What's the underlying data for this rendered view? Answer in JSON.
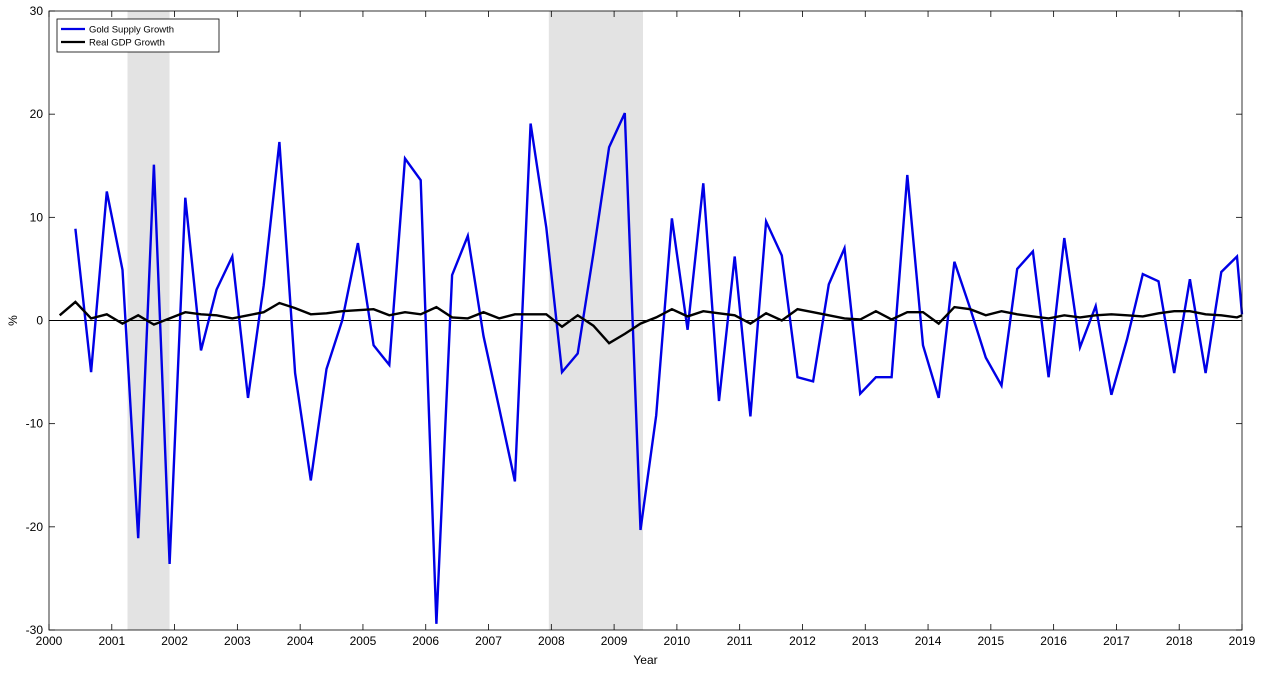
{
  "chart_data": {
    "type": "line",
    "title": "",
    "xlabel": "Year",
    "ylabel": "%",
    "xlim": [
      2000,
      2019
    ],
    "ylim": [
      -30,
      30
    ],
    "x_ticks": [
      2000,
      2001,
      2002,
      2003,
      2004,
      2005,
      2006,
      2007,
      2008,
      2009,
      2010,
      2011,
      2012,
      2013,
      2014,
      2015,
      2016,
      2017,
      2018,
      2019
    ],
    "y_ticks": [
      -30,
      -20,
      -10,
      0,
      10,
      20,
      30
    ],
    "grid": false,
    "legend_position": "top-left",
    "zero_line": true,
    "shaded_periods": [
      {
        "start": 2001.25,
        "end": 2001.92
      },
      {
        "start": 2007.96,
        "end": 2009.46
      }
    ],
    "series": [
      {
        "name": "Gold Supply Growth",
        "color": "#0000e6",
        "points": [
          [
            2000.42,
            8.9
          ],
          [
            2000.67,
            -5.0
          ],
          [
            2000.92,
            12.5
          ],
          [
            2001.17,
            4.9
          ],
          [
            2001.42,
            -21.1
          ],
          [
            2001.67,
            15.1
          ],
          [
            2001.92,
            -23.6
          ],
          [
            2002.17,
            11.9
          ],
          [
            2002.42,
            -2.9
          ],
          [
            2002.67,
            3.0
          ],
          [
            2002.92,
            6.2
          ],
          [
            2003.17,
            -7.5
          ],
          [
            2003.42,
            3.4
          ],
          [
            2003.67,
            17.3
          ],
          [
            2003.92,
            -5.1
          ],
          [
            2004.17,
            -15.5
          ],
          [
            2004.42,
            -4.7
          ],
          [
            2004.67,
            0.0
          ],
          [
            2004.92,
            7.5
          ],
          [
            2005.17,
            -2.4
          ],
          [
            2005.42,
            -4.3
          ],
          [
            2005.67,
            15.7
          ],
          [
            2005.92,
            13.6
          ],
          [
            2006.17,
            -29.4
          ],
          [
            2006.42,
            4.4
          ],
          [
            2006.67,
            8.2
          ],
          [
            2006.92,
            -1.5
          ],
          [
            2007.17,
            -8.5
          ],
          [
            2007.42,
            -15.6
          ],
          [
            2007.67,
            19.1
          ],
          [
            2007.92,
            9.0
          ],
          [
            2008.17,
            -5.0
          ],
          [
            2008.42,
            -3.2
          ],
          [
            2008.67,
            6.5
          ],
          [
            2008.92,
            16.8
          ],
          [
            2009.17,
            20.1
          ],
          [
            2009.42,
            -20.3
          ],
          [
            2009.67,
            -9.2
          ],
          [
            2009.92,
            9.9
          ],
          [
            2010.17,
            -0.9
          ],
          [
            2010.42,
            13.3
          ],
          [
            2010.67,
            -7.8
          ],
          [
            2010.92,
            6.2
          ],
          [
            2011.17,
            -9.3
          ],
          [
            2011.42,
            9.6
          ],
          [
            2011.67,
            6.3
          ],
          [
            2011.92,
            -5.5
          ],
          [
            2012.17,
            -5.9
          ],
          [
            2012.42,
            3.5
          ],
          [
            2012.67,
            7.0
          ],
          [
            2012.92,
            -7.1
          ],
          [
            2013.17,
            -5.5
          ],
          [
            2013.42,
            -5.5
          ],
          [
            2013.67,
            14.1
          ],
          [
            2013.92,
            -2.4
          ],
          [
            2014.17,
            -7.5
          ],
          [
            2014.42,
            5.7
          ],
          [
            2014.67,
            1.2
          ],
          [
            2014.92,
            -3.6
          ],
          [
            2015.17,
            -6.3
          ],
          [
            2015.42,
            5.0
          ],
          [
            2015.67,
            6.7
          ],
          [
            2015.92,
            -5.5
          ],
          [
            2016.17,
            8.0
          ],
          [
            2016.42,
            -2.6
          ],
          [
            2016.67,
            1.4
          ],
          [
            2016.92,
            -7.2
          ],
          [
            2017.17,
            -1.8
          ],
          [
            2017.42,
            4.5
          ],
          [
            2017.67,
            3.8
          ],
          [
            2017.92,
            -5.1
          ],
          [
            2018.17,
            4.0
          ],
          [
            2018.42,
            -5.1
          ],
          [
            2018.67,
            4.7
          ],
          [
            2018.92,
            6.2
          ],
          [
            2019.0,
            0.6
          ]
        ]
      },
      {
        "name": "Real GDP Growth",
        "color": "#000000",
        "points": [
          [
            2000.17,
            0.5
          ],
          [
            2000.42,
            1.8
          ],
          [
            2000.67,
            0.2
          ],
          [
            2000.92,
            0.6
          ],
          [
            2001.17,
            -0.3
          ],
          [
            2001.42,
            0.5
          ],
          [
            2001.67,
            -0.4
          ],
          [
            2001.92,
            0.2
          ],
          [
            2002.17,
            0.8
          ],
          [
            2002.42,
            0.6
          ],
          [
            2002.67,
            0.5
          ],
          [
            2002.92,
            0.2
          ],
          [
            2003.17,
            0.5
          ],
          [
            2003.42,
            0.8
          ],
          [
            2003.67,
            1.7
          ],
          [
            2003.92,
            1.2
          ],
          [
            2004.17,
            0.6
          ],
          [
            2004.42,
            0.7
          ],
          [
            2004.67,
            0.9
          ],
          [
            2004.92,
            1.0
          ],
          [
            2005.17,
            1.1
          ],
          [
            2005.42,
            0.5
          ],
          [
            2005.67,
            0.8
          ],
          [
            2005.92,
            0.6
          ],
          [
            2006.17,
            1.3
          ],
          [
            2006.42,
            0.3
          ],
          [
            2006.67,
            0.2
          ],
          [
            2006.92,
            0.8
          ],
          [
            2007.17,
            0.2
          ],
          [
            2007.42,
            0.6
          ],
          [
            2007.67,
            0.6
          ],
          [
            2007.92,
            0.6
          ],
          [
            2008.17,
            -0.6
          ],
          [
            2008.42,
            0.5
          ],
          [
            2008.67,
            -0.5
          ],
          [
            2008.92,
            -2.2
          ],
          [
            2009.17,
            -1.3
          ],
          [
            2009.42,
            -0.3
          ],
          [
            2009.67,
            0.3
          ],
          [
            2009.92,
            1.1
          ],
          [
            2010.17,
            0.4
          ],
          [
            2010.42,
            0.9
          ],
          [
            2010.67,
            0.7
          ],
          [
            2010.92,
            0.5
          ],
          [
            2011.17,
            -0.3
          ],
          [
            2011.42,
            0.7
          ],
          [
            2011.67,
            0.0
          ],
          [
            2011.92,
            1.1
          ],
          [
            2012.17,
            0.8
          ],
          [
            2012.42,
            0.5
          ],
          [
            2012.67,
            0.2
          ],
          [
            2012.92,
            0.1
          ],
          [
            2013.17,
            0.9
          ],
          [
            2013.42,
            0.1
          ],
          [
            2013.67,
            0.8
          ],
          [
            2013.92,
            0.8
          ],
          [
            2014.17,
            -0.3
          ],
          [
            2014.42,
            1.3
          ],
          [
            2014.67,
            1.1
          ],
          [
            2014.92,
            0.5
          ],
          [
            2015.17,
            0.9
          ],
          [
            2015.42,
            0.6
          ],
          [
            2015.67,
            0.4
          ],
          [
            2015.92,
            0.2
          ],
          [
            2016.17,
            0.5
          ],
          [
            2016.42,
            0.3
          ],
          [
            2016.67,
            0.5
          ],
          [
            2016.92,
            0.6
          ],
          [
            2017.17,
            0.5
          ],
          [
            2017.42,
            0.4
          ],
          [
            2017.67,
            0.7
          ],
          [
            2017.92,
            0.9
          ],
          [
            2018.17,
            0.9
          ],
          [
            2018.42,
            0.6
          ],
          [
            2018.67,
            0.5
          ],
          [
            2018.92,
            0.3
          ],
          [
            2019.0,
            0.5
          ]
        ]
      }
    ]
  }
}
